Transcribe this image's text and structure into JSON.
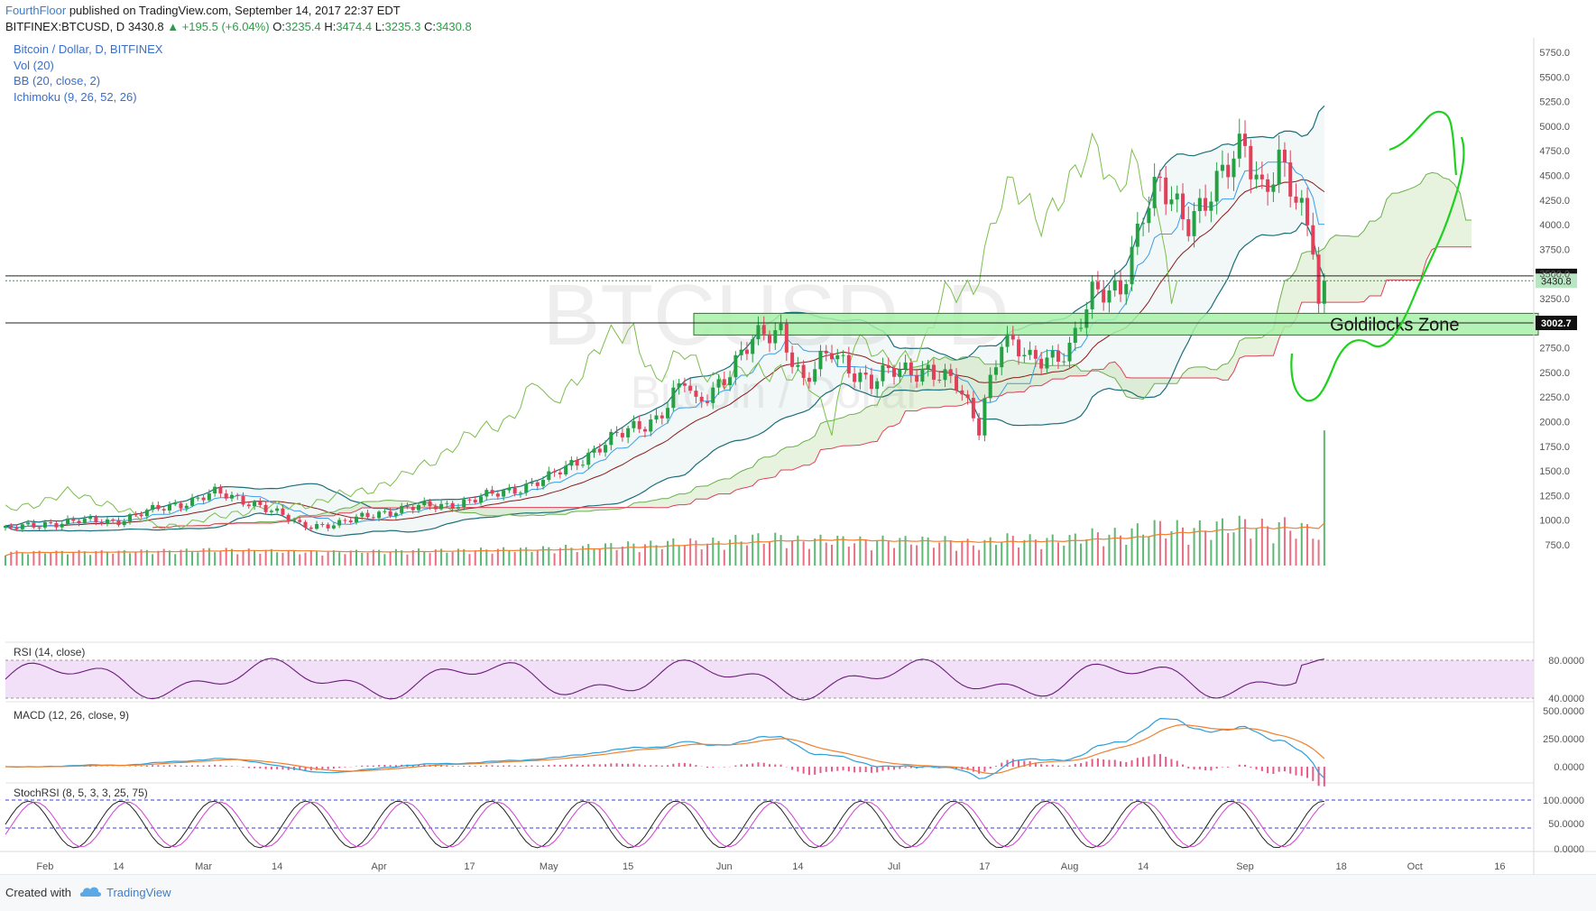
{
  "header": {
    "author": "FourthFloor",
    "published_text": "published on TradingView.com, September 14, 2017 22:37 EDT",
    "symbol_text": "BITFINEX:BTCUSD, D",
    "last": "3430.8",
    "change": "+195.5 (+6.04%)",
    "o_label": "O:",
    "o": "3235.4",
    "h_label": "H:",
    "h": "3474.4",
    "l_label": "L:",
    "l": "3235.3",
    "c_label": "C:",
    "c": "3430.8"
  },
  "legend": {
    "main": "Bitcoin / Dollar, D, BITFINEX",
    "vol": "Vol (20)",
    "bb": "BB (20, close, 2)",
    "ichimoku": "Ichimoku (9, 26, 52, 26)"
  },
  "watermark": {
    "line1": "BTCUSD, D",
    "line2": "Bitcoin / Dollar"
  },
  "annotation": {
    "zone_label": "Goldilocks Zone",
    "zone_low": 2880,
    "zone_high": 3100
  },
  "price_lines": [
    {
      "value": 3480.1,
      "label": "3480.1",
      "type": "level"
    },
    {
      "value": 3430.8,
      "label": "3430.8",
      "type": "last"
    },
    {
      "value": 3002.7,
      "label": "3002.7",
      "type": "level"
    }
  ],
  "panes": {
    "rsi_title": "RSI (14, close)",
    "macd_title": "MACD (12, 26, close, 9)",
    "stoch_title": "StochRSI (8, 5, 3, 3, 25, 75)"
  },
  "axes": {
    "price_ticks": [
      "5750.0",
      "5500.0",
      "5250.0",
      "5000.0",
      "4750.0",
      "4500.0",
      "4250.0",
      "4000.0",
      "3750.0",
      "3500.0",
      "3250.0",
      "2750.0",
      "2500.0",
      "2250.0",
      "2000.0",
      "1750.0",
      "1500.0",
      "1250.0",
      "1000.0",
      "750.0"
    ],
    "rsi_ticks": [
      "80.0000",
      "40.0000"
    ],
    "macd_ticks": [
      "500.0000",
      "250.0000",
      "0.0000"
    ],
    "stoch_ticks": [
      "100.0000",
      "50.0000",
      "0.0000"
    ],
    "x_ticks": [
      "Feb",
      "14",
      "Mar",
      "14",
      "Apr",
      "17",
      "May",
      "15",
      "Jun",
      "14",
      "Jul",
      "17",
      "Aug",
      "14",
      "Sep",
      "18",
      "Oct",
      "16"
    ]
  },
  "footer": {
    "created_with": "Created with",
    "brand": "TradingView"
  },
  "colors": {
    "up": "#26a044",
    "down": "#e0405a",
    "bb": "#1b6f7a",
    "ichi_lag": "#7bbf4a",
    "ichi_red": "#e0405a",
    "vol_ma": "#f08030",
    "rsi": "#6a1b7a",
    "rsi_band": "#f2e0f8",
    "macd": "#2a9fd8",
    "signal": "#f08030",
    "zone": "#a8f0a8",
    "drawing": "#1fd11f"
  },
  "chart_data": {
    "type": "candlestick",
    "title": "Bitcoin / Dollar, D, BITFINEX",
    "x_range": [
      "2017-01-25",
      "2017-10-22"
    ],
    "ylim": [
      600,
      5900
    ],
    "last_close": 3430.8,
    "price_path": [
      [
        "2017-01-25",
        900
      ],
      [
        "2017-02-01",
        970
      ],
      [
        "2017-02-14",
        1000
      ],
      [
        "2017-03-03",
        1270
      ],
      [
        "2017-03-10",
        1180
      ],
      [
        "2017-03-18",
        950
      ],
      [
        "2017-03-25",
        960
      ],
      [
        "2017-04-01",
        1080
      ],
      [
        "2017-04-17",
        1190
      ],
      [
        "2017-05-01",
        1420
      ],
      [
        "2017-05-10",
        1750
      ],
      [
        "2017-05-20",
        2050
      ],
      [
        "2017-05-25",
        2400
      ],
      [
        "2017-05-27",
        2150
      ],
      [
        "2017-06-06",
        2800
      ],
      [
        "2017-06-11",
        2950
      ],
      [
        "2017-06-15",
        2400
      ],
      [
        "2017-06-20",
        2700
      ],
      [
        "2017-06-27",
        2400
      ],
      [
        "2017-07-01",
        2500
      ],
      [
        "2017-07-07",
        2550
      ],
      [
        "2017-07-12",
        2350
      ],
      [
        "2017-07-16",
        1950
      ],
      [
        "2017-07-17",
        2250
      ],
      [
        "2017-07-20",
        2850
      ],
      [
        "2017-07-25",
        2600
      ],
      [
        "2017-08-01",
        2750
      ],
      [
        "2017-08-05",
        3250
      ],
      [
        "2017-08-10",
        3400
      ],
      [
        "2017-08-14",
        4100
      ],
      [
        "2017-08-17",
        4350
      ],
      [
        "2017-08-22",
        4100
      ],
      [
        "2017-08-27",
        4350
      ],
      [
        "2017-09-01",
        4850
      ],
      [
        "2017-09-04",
        4400
      ],
      [
        "2017-09-07",
        4600
      ],
      [
        "2017-09-10",
        4200
      ],
      [
        "2017-09-13",
        3870
      ],
      [
        "2017-09-14",
        3235
      ],
      [
        "2017-09-15",
        3430.8
      ]
    ],
    "volume_last": 1850,
    "rsi_levels": [
      80,
      40
    ],
    "stoch_levels": [
      75,
      25
    ]
  }
}
